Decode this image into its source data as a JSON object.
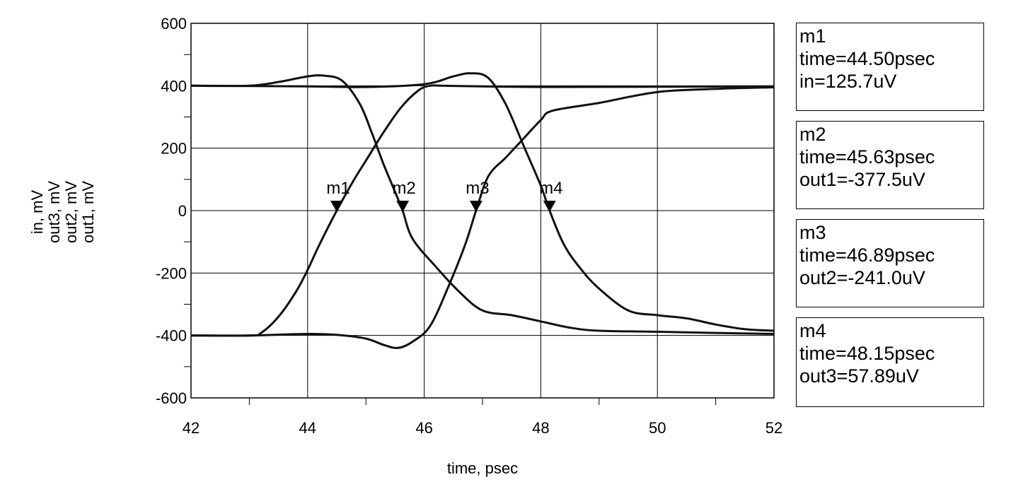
{
  "chart_data": {
    "type": "line",
    "xlabel": "time, psec",
    "ylabel_lines": [
      "in, mV",
      "out3, mV",
      "out2, mV",
      "out1, mV"
    ],
    "xlim": [
      42,
      52
    ],
    "ylim": [
      -600,
      600
    ],
    "x_ticks": [
      "42",
      "44",
      "46",
      "48",
      "50",
      "52"
    ],
    "y_ticks": [
      "600",
      "400",
      "200",
      "0",
      "-200",
      "-400",
      "-600"
    ],
    "grid": true,
    "series": [
      {
        "x": [
          42,
          43,
          43.2,
          43.5,
          43.8,
          44.0,
          44.2,
          44.5,
          44.8,
          45.0,
          45.3,
          45.6,
          45.9,
          46.1,
          46.3,
          47,
          48,
          50,
          52
        ],
        "y": [
          -400,
          -400,
          -392,
          -340,
          -260,
          -190,
          -110,
          0,
          100,
          160,
          250,
          330,
          385,
          400,
          400,
          398,
          396,
          397,
          398
        ]
      },
      {
        "x": [
          42,
          43,
          43.5,
          44.0,
          44.3,
          44.6,
          44.9,
          45.1,
          45.3,
          45.5,
          45.63,
          45.8,
          46.2,
          46.6,
          47.0,
          47.5,
          48.0,
          48.5,
          49.0,
          50,
          51,
          52
        ],
        "y": [
          400,
          400,
          412,
          430,
          432,
          415,
          340,
          250,
          150,
          60,
          0,
          -90,
          -180,
          -260,
          -320,
          -335,
          -355,
          -375,
          -385,
          -388,
          -392,
          -395
        ]
      },
      {
        "x": [
          42,
          43,
          44.0,
          44.5,
          45.0,
          45.3,
          45.55,
          45.8,
          46.1,
          46.4,
          46.7,
          46.89,
          47.1,
          47.4,
          47.7,
          48.0,
          48.2,
          49,
          50,
          51,
          52
        ],
        "y": [
          -400,
          -400,
          -395,
          -398,
          -410,
          -430,
          -440,
          -420,
          -370,
          -250,
          -110,
          0,
          110,
          170,
          230,
          290,
          320,
          345,
          380,
          390,
          395
        ]
      },
      {
        "x": [
          42,
          44,
          45,
          46,
          46.5,
          46.8,
          47.1,
          47.4,
          47.7,
          48.0,
          48.15,
          48.4,
          48.7,
          49.0,
          49.5,
          50,
          50.5,
          51,
          51.5,
          52
        ],
        "y": [
          400,
          398,
          396,
          405,
          430,
          440,
          425,
          340,
          210,
          80,
          0,
          -110,
          -190,
          -250,
          -320,
          -335,
          -345,
          -365,
          -380,
          -385
        ]
      }
    ],
    "markers": [
      {
        "name": "m1",
        "x": 44.5,
        "y": 0,
        "lines": [
          "m1",
          "time=44.50psec",
          "in=125.7uV"
        ]
      },
      {
        "name": "m2",
        "x": 45.63,
        "y": 0,
        "lines": [
          "m2",
          "time=45.63psec",
          "out1=-377.5uV"
        ]
      },
      {
        "name": "m3",
        "x": 46.89,
        "y": 0,
        "lines": [
          "m3",
          "time=46.89psec",
          "out2=-241.0uV"
        ]
      },
      {
        "name": "m4",
        "x": 48.15,
        "y": 0,
        "lines": [
          "m4",
          "time=48.15psec",
          "out3=57.89uV"
        ]
      }
    ]
  }
}
